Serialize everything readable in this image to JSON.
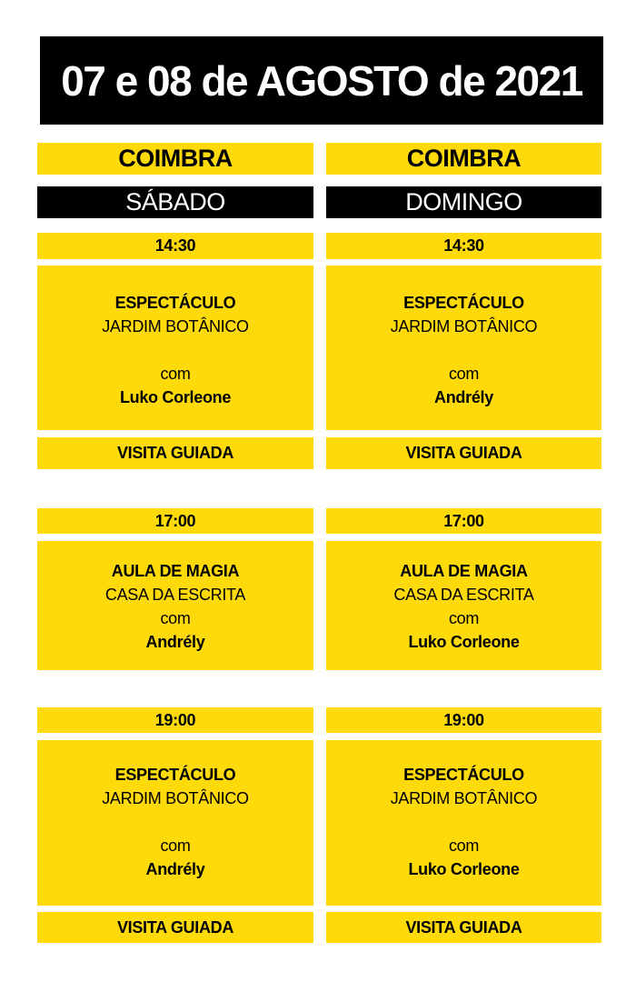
{
  "title": "07 e 08 de AGOSTO de 2021",
  "colors": {
    "accent": "#FFDA0A",
    "dark": "#000000"
  },
  "columns": [
    {
      "city": "COIMBRA",
      "day": "SÁBADO",
      "events": [
        {
          "time": "14:30",
          "type": "ESPECTÁCULO",
          "place": "JARDIM BOTÂNICO",
          "with": "com",
          "performer": "Luko Corleone",
          "extra": "VISITA GUIADA"
        },
        {
          "time": "17:00",
          "type": "AULA DE MAGIA",
          "place": "CASA DA ESCRITA",
          "with": "com",
          "performer": "Andrély"
        },
        {
          "time": "19:00",
          "type": "ESPECTÁCULO",
          "place": "JARDIM BOTÂNICO",
          "with": "com",
          "performer": "Andrély",
          "extra": "VISITA GUIADA"
        }
      ]
    },
    {
      "city": "COIMBRA",
      "day": "DOMINGO",
      "events": [
        {
          "time": "14:30",
          "type": "ESPECTÁCULO",
          "place": "JARDIM BOTÂNICO",
          "with": "com",
          "performer": "Andrély",
          "extra": "VISITA GUIADA"
        },
        {
          "time": "17:00",
          "type": "AULA DE MAGIA",
          "place": "CASA DA ESCRITA",
          "with": "com",
          "performer": "Luko Corleone"
        },
        {
          "time": "19:00",
          "type": "ESPECTÁCULO",
          "place": "JARDIM BOTÂNICO",
          "with": "com",
          "performer": "Luko Corleone",
          "extra": "VISITA GUIADA"
        }
      ]
    }
  ]
}
